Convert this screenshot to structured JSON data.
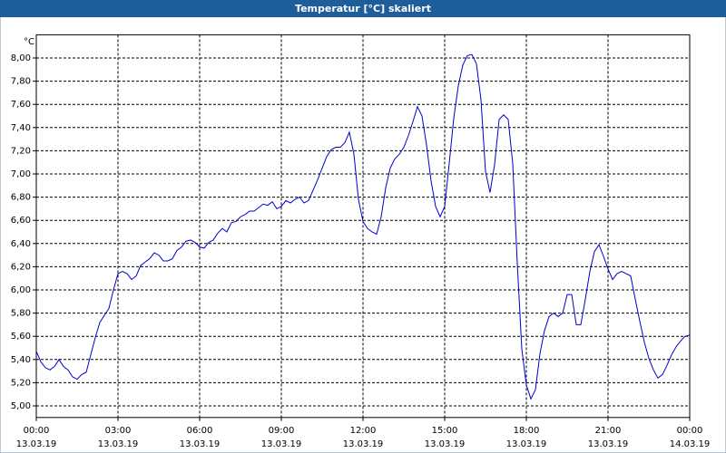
{
  "chart_data": {
    "type": "line",
    "title": "Temperatur [°C] skaliert",
    "y_label": "°C",
    "x": [
      0,
      10,
      20,
      30,
      40,
      50,
      60,
      70,
      80,
      90,
      100,
      110,
      120,
      130,
      140,
      150,
      160,
      170,
      180,
      190,
      200,
      210,
      220,
      230,
      240,
      250,
      260,
      270,
      280,
      290,
      300,
      310,
      320,
      330,
      340,
      350,
      360,
      370,
      380,
      390,
      400,
      410,
      420,
      430,
      440,
      450,
      460,
      470,
      480,
      490,
      500,
      510,
      520,
      530,
      540,
      550,
      560,
      570,
      580,
      590,
      600,
      610,
      620,
      630,
      640,
      650,
      660,
      670,
      680,
      690,
      700,
      710,
      720,
      730,
      740,
      750,
      760,
      770,
      780,
      790,
      800,
      810,
      820,
      830,
      840,
      850,
      860,
      870,
      880,
      890,
      900,
      910,
      920,
      930,
      940,
      950,
      960,
      970,
      980,
      990,
      1000,
      1010,
      1020,
      1030,
      1040,
      1050,
      1060,
      1070,
      1080,
      1090,
      1100,
      1110,
      1120,
      1130,
      1140,
      1150,
      1160,
      1170,
      1180,
      1190,
      1200,
      1210,
      1220,
      1230,
      1240,
      1250,
      1260,
      1270,
      1280,
      1290,
      1300,
      1310,
      1320,
      1330,
      1340,
      1350,
      1360,
      1370,
      1380,
      1390,
      1400,
      1410,
      1420,
      1430,
      1440
    ],
    "series": [
      {
        "name": "Temperatur",
        "color": "#0000cc",
        "values": [
          5.47,
          5.38,
          5.33,
          5.31,
          5.34,
          5.4,
          5.34,
          5.31,
          5.25,
          5.23,
          5.27,
          5.29,
          5.44,
          5.59,
          5.72,
          5.78,
          5.84,
          6.0,
          6.14,
          6.16,
          6.14,
          6.09,
          6.12,
          6.21,
          6.24,
          6.27,
          6.32,
          6.3,
          6.25,
          6.25,
          6.27,
          6.34,
          6.37,
          6.42,
          6.43,
          6.41,
          6.37,
          6.36,
          6.41,
          6.43,
          6.49,
          6.53,
          6.5,
          6.58,
          6.59,
          6.63,
          6.65,
          6.68,
          6.68,
          6.71,
          6.74,
          6.73,
          6.76,
          6.7,
          6.72,
          6.77,
          6.75,
          6.78,
          6.8,
          6.75,
          6.77,
          6.86,
          6.95,
          7.05,
          7.15,
          7.21,
          7.23,
          7.23,
          7.27,
          7.36,
          7.17,
          6.78,
          6.59,
          6.53,
          6.5,
          6.48,
          6.63,
          6.88,
          7.05,
          7.13,
          7.17,
          7.23,
          7.33,
          7.45,
          7.58,
          7.5,
          7.25,
          6.94,
          6.72,
          6.63,
          6.72,
          7.09,
          7.48,
          7.76,
          7.94,
          8.02,
          8.03,
          7.95,
          7.64,
          7.02,
          6.84,
          7.08,
          7.47,
          7.51,
          7.47,
          7.09,
          6.23,
          5.49,
          5.18,
          5.06,
          5.14,
          5.45,
          5.65,
          5.77,
          5.8,
          5.77,
          5.8,
          5.96,
          5.96,
          5.7,
          5.7,
          5.92,
          6.16,
          6.33,
          6.39,
          6.29,
          6.18,
          6.09,
          6.14,
          6.16,
          6.14,
          6.12,
          5.92,
          5.73,
          5.55,
          5.41,
          5.31,
          5.24,
          5.27,
          5.35,
          5.44,
          5.51,
          5.56,
          5.6,
          5.61
        ]
      }
    ],
    "xlim": [
      0,
      1440
    ],
    "xticks": [
      {
        "value": 0,
        "label": "00:00"
      },
      {
        "value": 180,
        "label": "03:00"
      },
      {
        "value": 360,
        "label": "06:00"
      },
      {
        "value": 540,
        "label": "09:00"
      },
      {
        "value": 720,
        "label": "12:00"
      },
      {
        "value": 900,
        "label": "15:00"
      },
      {
        "value": 1080,
        "label": "18:00"
      },
      {
        "value": 1260,
        "label": "21:00"
      },
      {
        "value": 1440,
        "label": "00:00"
      }
    ],
    "xtick_dates": [
      "13.03.19",
      "13.03.19",
      "13.03.19",
      "13.03.19",
      "13.03.19",
      "13.03.19",
      "13.03.19",
      "13.03.19",
      "14.03.19"
    ],
    "ylim": [
      4.9,
      8.2
    ],
    "yticks": [
      {
        "value": 5,
        "label": "5,00"
      },
      {
        "value": 5.2,
        "label": "5,20"
      },
      {
        "value": 5.4,
        "label": "5,40"
      },
      {
        "value": 5.6,
        "label": "5,60"
      },
      {
        "value": 5.8,
        "label": "5,80"
      },
      {
        "value": 6,
        "label": "6,00"
      },
      {
        "value": 6.2,
        "label": "6,20"
      },
      {
        "value": 6.4,
        "label": "6,40"
      },
      {
        "value": 6.6,
        "label": "6,60"
      },
      {
        "value": 6.8,
        "label": "6,80"
      },
      {
        "value": 7,
        "label": "7,00"
      },
      {
        "value": 7.2,
        "label": "7,20"
      },
      {
        "value": 7.4,
        "label": "7,40"
      },
      {
        "value": 7.6,
        "label": "7,60"
      },
      {
        "value": 7.8,
        "label": "7,80"
      },
      {
        "value": 8,
        "label": "8,00"
      }
    ],
    "grid": true
  }
}
